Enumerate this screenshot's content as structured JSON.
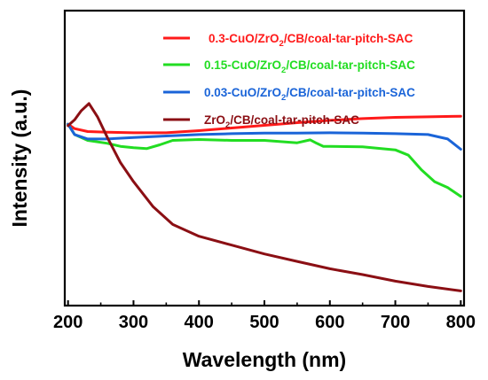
{
  "chart_data": {
    "type": "line",
    "xlabel": "Wavelength (nm)",
    "ylabel": "Intensity (a.u.)",
    "xlim": [
      195,
      805
    ],
    "ylim": [
      0,
      100
    ],
    "xticks": [
      200,
      300,
      400,
      500,
      600,
      700,
      800
    ],
    "y_tick_labels": "none",
    "grid": false,
    "legend_position": "top-right",
    "series": [
      {
        "name": "0.3-CuO/ZrO2/CB/coal-tar-pitch-SAC",
        "legend_parts": [
          "0.3-CuO/ZrO",
          "2",
          "/CB/coal-tar-pitch-SAC"
        ],
        "color": "#ff1a1a",
        "x": [
          200,
          210,
          230,
          260,
          300,
          350,
          400,
          450,
          500,
          550,
          600,
          650,
          700,
          750,
          800
        ],
        "y": [
          61.5,
          60,
          59,
          58.8,
          58.6,
          58.6,
          59.3,
          60.2,
          61.1,
          62,
          62.8,
          63.4,
          63.8,
          64,
          64.2
        ]
      },
      {
        "name": "0.15-CuO/ZrO2/CB/coal-tar-pitch-SAC",
        "legend_parts": [
          "0.15-CuO/ZrO",
          "2",
          "/CB/coal-tar-pitch-SAC"
        ],
        "color": "#22dd22",
        "x": [
          200,
          210,
          230,
          260,
          280,
          300,
          320,
          340,
          360,
          400,
          450,
          500,
          550,
          570,
          580,
          590,
          600,
          650,
          700,
          720,
          740,
          760,
          780,
          800
        ],
        "y": [
          61.5,
          58,
          56,
          55,
          54,
          53.5,
          53.2,
          54.5,
          56,
          56.3,
          56,
          56,
          55.2,
          56.2,
          55,
          54,
          54,
          53.8,
          52.8,
          51,
          46,
          42,
          40,
          37
        ]
      },
      {
        "name": "0.03-CuO/ZrO2/CB/coal-tar-pitch-SAC",
        "legend_parts": [
          "0.03-CuO/ZrO",
          "2",
          "/CB/coal-tar-pitch-SAC"
        ],
        "color": "#1a64d8",
        "x": [
          200,
          210,
          230,
          260,
          300,
          350,
          400,
          450,
          500,
          550,
          600,
          650,
          700,
          750,
          780,
          800
        ],
        "y": [
          61.5,
          58,
          56.5,
          56.5,
          57,
          57.5,
          58,
          58.3,
          58.5,
          58.5,
          58.6,
          58.5,
          58.3,
          58,
          56.5,
          53
        ]
      },
      {
        "name": "ZrO2/CB/coal-tar-pitch-SAC",
        "legend_parts": [
          "ZrO",
          "2",
          "/CB/coal-tar-pitch-SAC"
        ],
        "color": "#8b0f14",
        "x": [
          200,
          210,
          220,
          232,
          245,
          260,
          280,
          300,
          330,
          360,
          400,
          450,
          500,
          550,
          600,
          650,
          700,
          750,
          800
        ],
        "y": [
          61,
          63,
          66,
          68.5,
          64,
          57,
          48.5,
          42,
          33.5,
          27.5,
          23.5,
          20.5,
          17.5,
          15,
          12.5,
          10.5,
          8.3,
          6.5,
          5
        ]
      }
    ]
  }
}
